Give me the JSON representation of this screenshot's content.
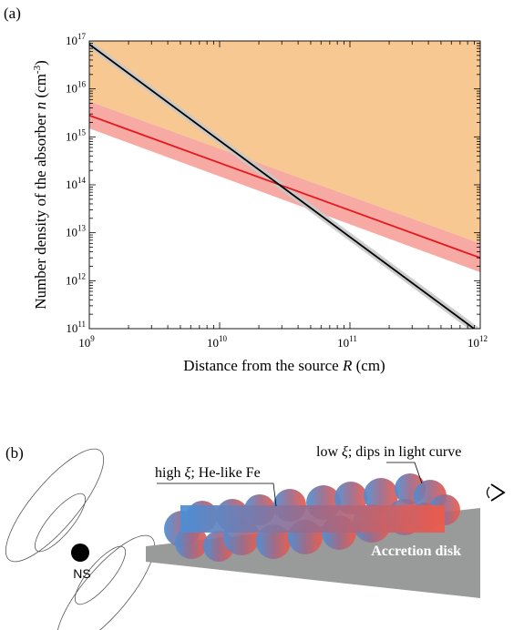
{
  "panel_a": {
    "label": "(a)",
    "ylabel_prefix": "Number density of the absorber ",
    "ylabel_var": "n",
    "ylabel_unit_open": " (cm",
    "ylabel_unit_exp": "-3",
    "ylabel_unit_close": ")",
    "xlabel_prefix": "Distance from the source ",
    "xlabel_var": "R",
    "xlabel_unit": " (cm)",
    "chart_data": {
      "type": "line",
      "x_scale": "log",
      "y_scale": "log",
      "xlim": [
        1000000000.0,
        1000000000000.0
      ],
      "ylim": [
        100000000000.0,
        1e+17
      ],
      "x_ticks": [
        {
          "base": "10",
          "exp": "9",
          "value": 1000000000.0
        },
        {
          "base": "10",
          "exp": "10",
          "value": 10000000000.0
        },
        {
          "base": "10",
          "exp": "11",
          "value": 100000000000.0
        },
        {
          "base": "10",
          "exp": "12",
          "value": 1000000000000.0
        }
      ],
      "y_ticks": [
        {
          "base": "10",
          "exp": "11",
          "value": 100000000000.0
        },
        {
          "base": "10",
          "exp": "12",
          "value": 1000000000000.0
        },
        {
          "base": "10",
          "exp": "13",
          "value": 10000000000000.0
        },
        {
          "base": "10",
          "exp": "14",
          "value": 100000000000000.0
        },
        {
          "base": "10",
          "exp": "15",
          "value": 1000000000000000.0
        },
        {
          "base": "10",
          "exp": "16",
          "value": 1e+16
        },
        {
          "base": "10",
          "exp": "17",
          "value": 1e+17
        }
      ],
      "series": [
        {
          "color": "#e8161d",
          "band_color": "#f49b93",
          "x": [
            1000000000.0,
            1000000000000.0
          ],
          "y": [
            2800000000000000.0,
            3000000000000.0
          ],
          "y_low": [
            1500000000000000.0,
            1500000000000.0
          ],
          "y_high": [
            5500000000000000.0,
            6000000000000.0
          ]
        },
        {
          "color": "#000000",
          "band_color": "#c8c8c8",
          "x": [
            1000000000.0,
            1000000000000.0
          ],
          "y": [
            8.5e+16,
            80000000000.0
          ],
          "y_low": [
            7e+16,
            65000000000.0
          ],
          "y_high": [
            1.05e+17,
            100000000000.0
          ]
        }
      ],
      "shaded_region": {
        "color": "#f8c892",
        "description_bound": "above red band"
      },
      "grid": false,
      "legend": "none"
    }
  },
  "panel_b": {
    "label": "(b)",
    "high_xi_prefix": "high ",
    "high_xi_symbol": "ξ",
    "high_xi_suffix": "; He-like Fe",
    "low_xi_prefix": "low ",
    "low_xi_symbol": "ξ",
    "low_xi_suffix": "; dips in light curve",
    "disk_label": "Accretion disk",
    "ns_label": "NS",
    "colors": {
      "cloud_left": "#4a8fd6",
      "cloud_mid": "#9b6a8a",
      "cloud_right": "#ee5a4a",
      "disk": "#999b9a"
    },
    "observer_icon": "eye-icon"
  }
}
